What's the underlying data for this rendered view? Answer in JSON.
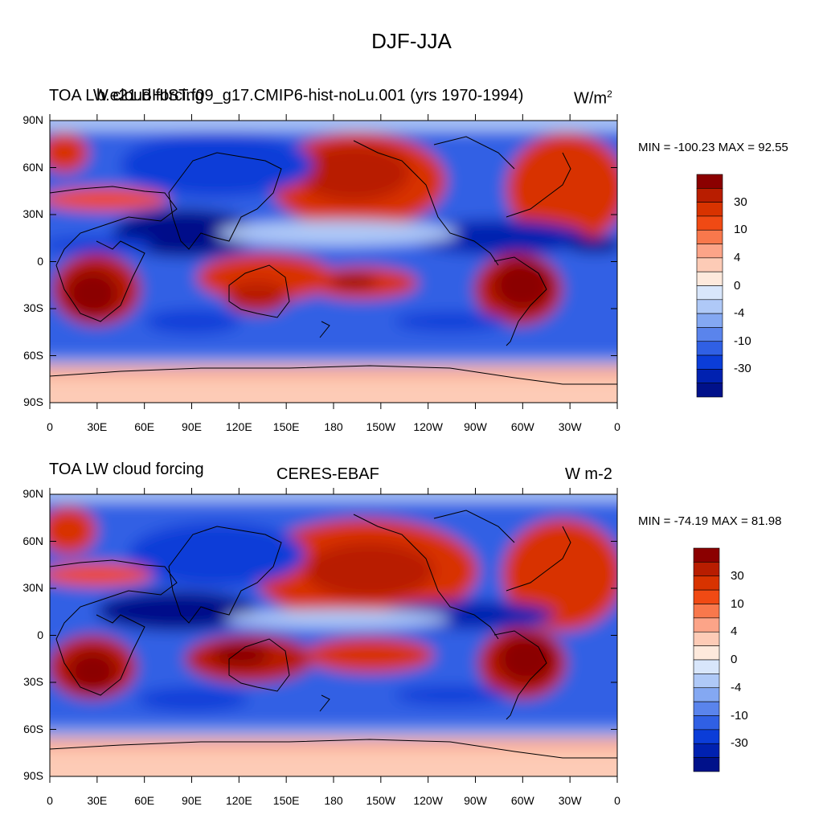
{
  "figure": {
    "title": "DJF-JJA"
  },
  "panels": [
    {
      "left_title": "TOA LW cloud forcing",
      "center_title": "b.e21.BHIST.f09_g17.CMIP6-hist-noLu.001 (yrs 1970-1994)",
      "units_base": "W/m",
      "units_exp": "2",
      "min_max": "MIN = -100.23 MAX =  92.55"
    },
    {
      "left_title": "TOA LW cloud forcing",
      "center_title": "CERES-EBAF",
      "units": "W m-2",
      "min_max": "MIN = -74.19 MAX =  81.98"
    }
  ],
  "lat_labels": [
    "90N",
    "60N",
    "30N",
    "0",
    "30S",
    "60S",
    "90S"
  ],
  "lon_labels": [
    "0",
    "30E",
    "60E",
    "90E",
    "120E",
    "150E",
    "180",
    "150W",
    "120W",
    "90W",
    "60W",
    "30W",
    "0"
  ],
  "colorbar": {
    "labels": [
      "30",
      "10",
      "4",
      "0",
      "-4",
      "-10",
      "-30"
    ],
    "colors": [
      "#8b0000",
      "#b81d00",
      "#d83300",
      "#f04a14",
      "#f8784c",
      "#fca488",
      "#fdcbb6",
      "#fde9dc",
      "#d8e6fb",
      "#afc9f7",
      "#84a8f2",
      "#5a84ec",
      "#3060e4",
      "#0b3dd8",
      "#0021b0",
      "#00118a"
    ]
  },
  "palette": {
    "land_outline": "#000000",
    "frame": "#000000"
  }
}
